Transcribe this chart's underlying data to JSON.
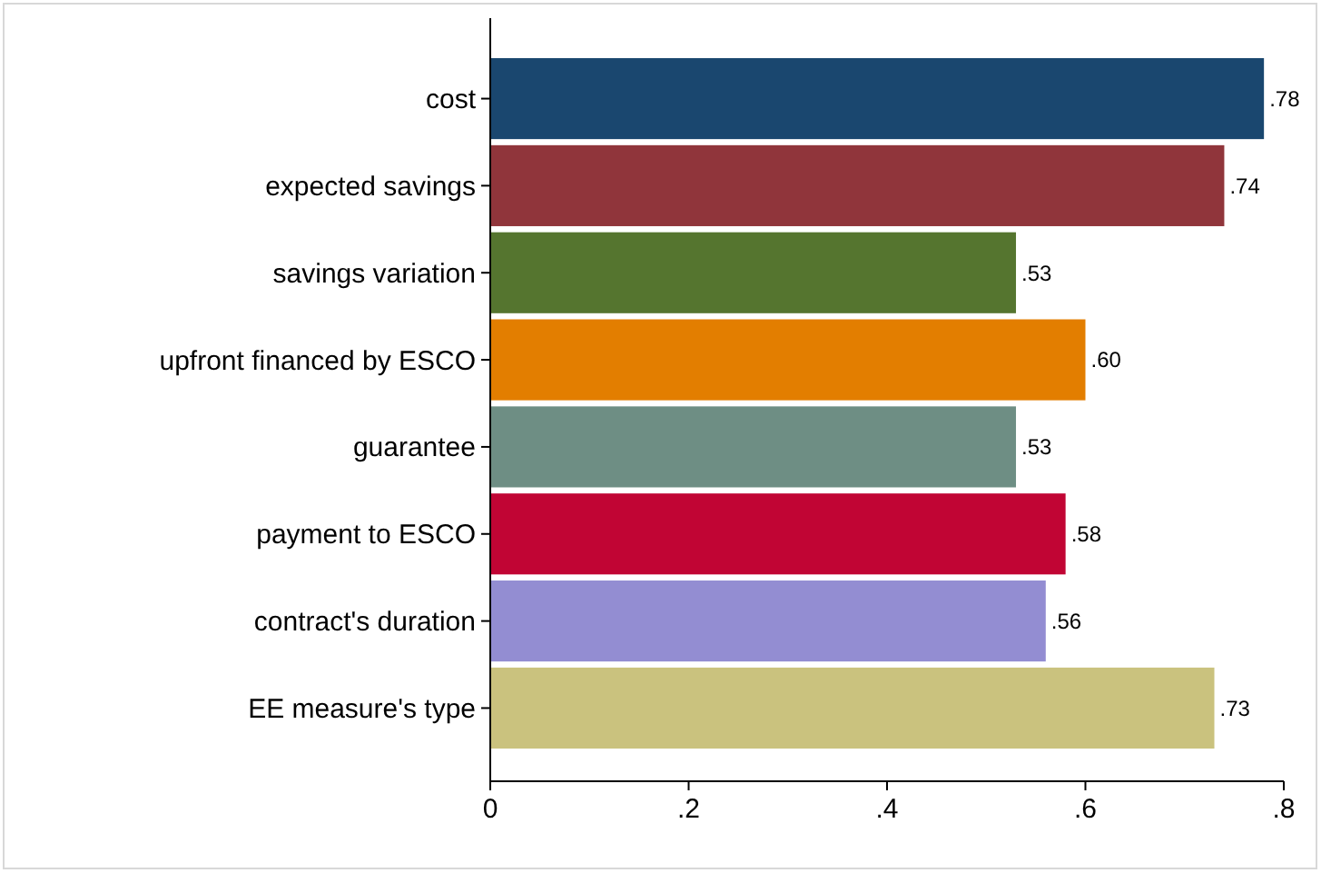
{
  "chart_data": {
    "type": "bar",
    "orientation": "horizontal",
    "categories": [
      "cost",
      "expected savings",
      "savings variation",
      "upfront financed by ESCO",
      "guarantee",
      "payment to ESCO",
      "contract's duration",
      "EE measure's type"
    ],
    "values": [
      0.78,
      0.74,
      0.53,
      0.6,
      0.53,
      0.58,
      0.56,
      0.73
    ],
    "colors": [
      "#1a476f",
      "#90353b",
      "#55752f",
      "#e37e00",
      "#6e8e84",
      "#c10534",
      "#938dd2",
      "#cac27e"
    ],
    "value_labels": [
      ".78",
      ".74",
      ".53",
      ".60",
      ".53",
      ".58",
      ".56",
      ".73"
    ],
    "xlim": [
      0,
      0.8
    ],
    "xticks": [
      0,
      {
        "value": 0.2,
        "label": ".2"
      },
      {
        "value": 0.4,
        "label": ".4"
      },
      {
        "value": 0.6,
        "label": ".6"
      },
      {
        "value": 0.8,
        "label": ".8"
      }
    ]
  }
}
